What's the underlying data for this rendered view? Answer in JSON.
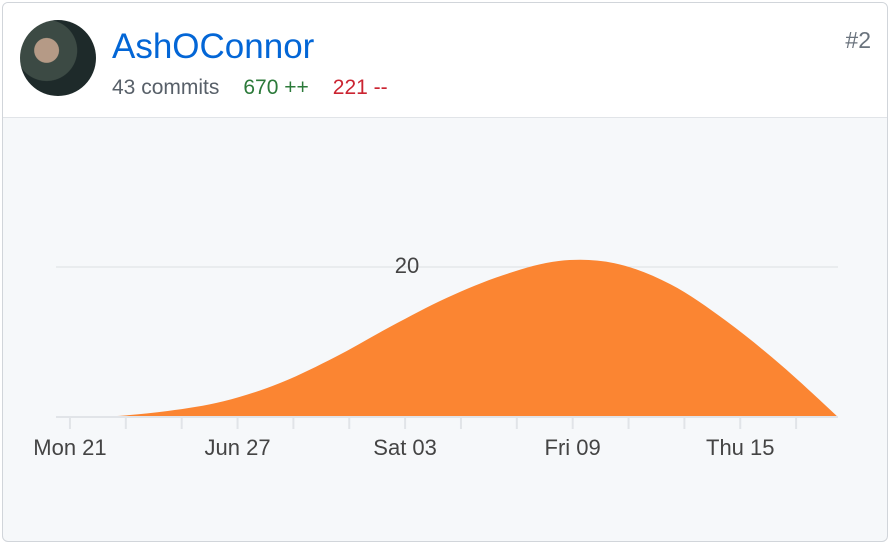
{
  "header": {
    "name": "AshOConnor",
    "commits": "43 commits",
    "additions": "670 ++",
    "deletions": "221 --",
    "rank": "#2"
  },
  "chart_data": {
    "type": "area",
    "color": "#fb8532",
    "x": [
      -0.5,
      1.5,
      3.5,
      5.5,
      7.5,
      9.5,
      11.5,
      13.5,
      15.5,
      17.5,
      19.5,
      21.5,
      23.5,
      25.5,
      27.5
    ],
    "values": [
      0,
      0.1,
      0.8,
      2.1,
      4.5,
      8,
      12.1,
      15.9,
      18.9,
      20.8,
      20.5,
      17.7,
      12.8,
      6.8,
      0
    ],
    "xlim": [
      -0.5,
      27.5
    ],
    "xticks": [
      {
        "value": 0,
        "label": "Mon 21"
      },
      {
        "value": 6,
        "label": "Jun 27"
      },
      {
        "value": 12,
        "label": "Sat 03"
      },
      {
        "value": 18,
        "label": "Fri 09"
      },
      {
        "value": 24,
        "label": "Thu 15"
      }
    ],
    "minor_xticks": [
      2,
      4,
      8,
      10,
      14,
      16,
      20,
      22,
      26
    ],
    "ylim": [
      0,
      40
    ],
    "yticks": [
      20
    ],
    "grid": true
  }
}
